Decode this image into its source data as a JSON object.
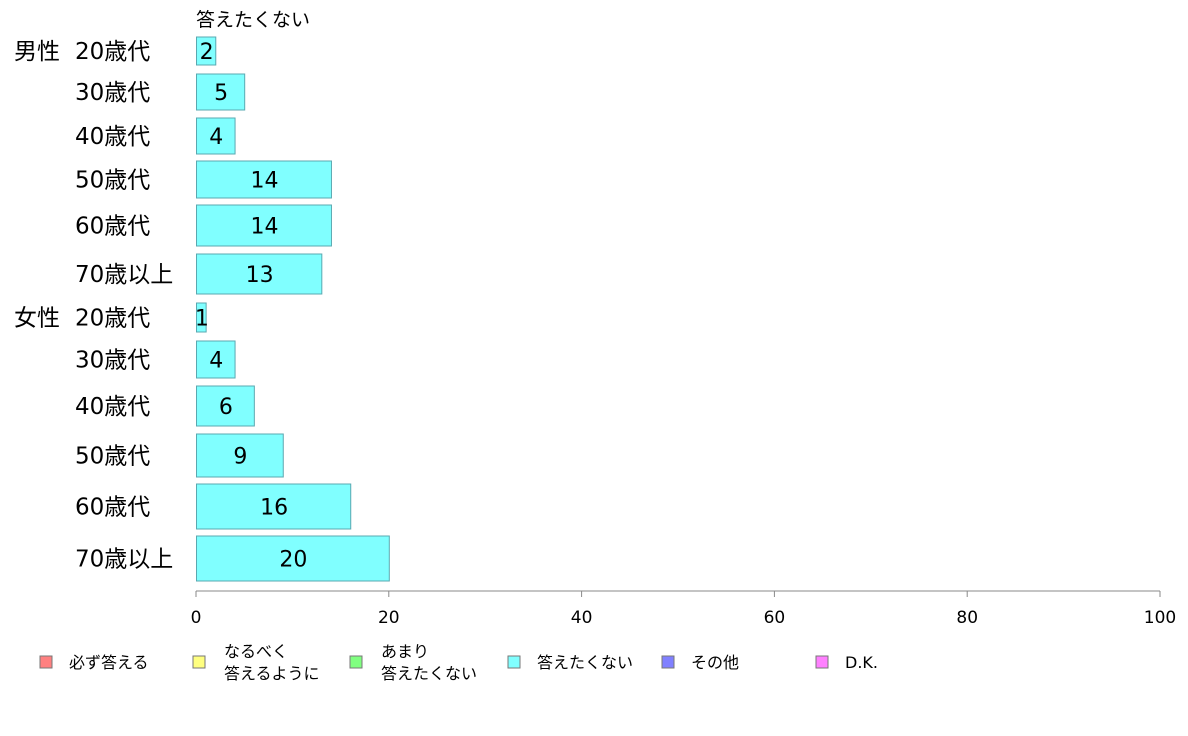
{
  "chart_data": {
    "type": "bar",
    "orientation": "horizontal",
    "series": [
      {
        "name": "答えたくない",
        "color": "#80ffff",
        "values": [
          2,
          5,
          4,
          14,
          14,
          13,
          1,
          4,
          6,
          9,
          16,
          20
        ]
      }
    ],
    "categories": [
      {
        "group": "男性",
        "label": "20歳代"
      },
      {
        "group": "",
        "label": "30歳代"
      },
      {
        "group": "",
        "label": "40歳代"
      },
      {
        "group": "",
        "label": "50歳代"
      },
      {
        "group": "",
        "label": "60歳代"
      },
      {
        "group": "",
        "label": "70歳以上"
      },
      {
        "group": "女性",
        "label": "20歳代"
      },
      {
        "group": "",
        "label": "30歳代"
      },
      {
        "group": "",
        "label": "40歳代"
      },
      {
        "group": "",
        "label": "50歳代"
      },
      {
        "group": "",
        "label": "60歳代"
      },
      {
        "group": "",
        "label": "70歳以上"
      }
    ],
    "series_title": "答えたくない",
    "xlim": [
      0,
      100
    ],
    "xticks": [
      0,
      20,
      40,
      60,
      80,
      100
    ],
    "grid": false,
    "legend_position": "bottom",
    "legend": [
      {
        "lines": [
          "必ず答える"
        ],
        "color": "#ff8080"
      },
      {
        "lines": [
          "なるべく",
          "答えるように"
        ],
        "color": "#ffff80"
      },
      {
        "lines": [
          "あまり",
          "答えたくない"
        ],
        "color": "#80ff80"
      },
      {
        "lines": [
          "答えたくない"
        ],
        "color": "#80ffff"
      },
      {
        "lines": [
          "その他"
        ],
        "color": "#8080ff"
      },
      {
        "lines": [
          "D.K."
        ],
        "color": "#ff80ff"
      }
    ]
  }
}
